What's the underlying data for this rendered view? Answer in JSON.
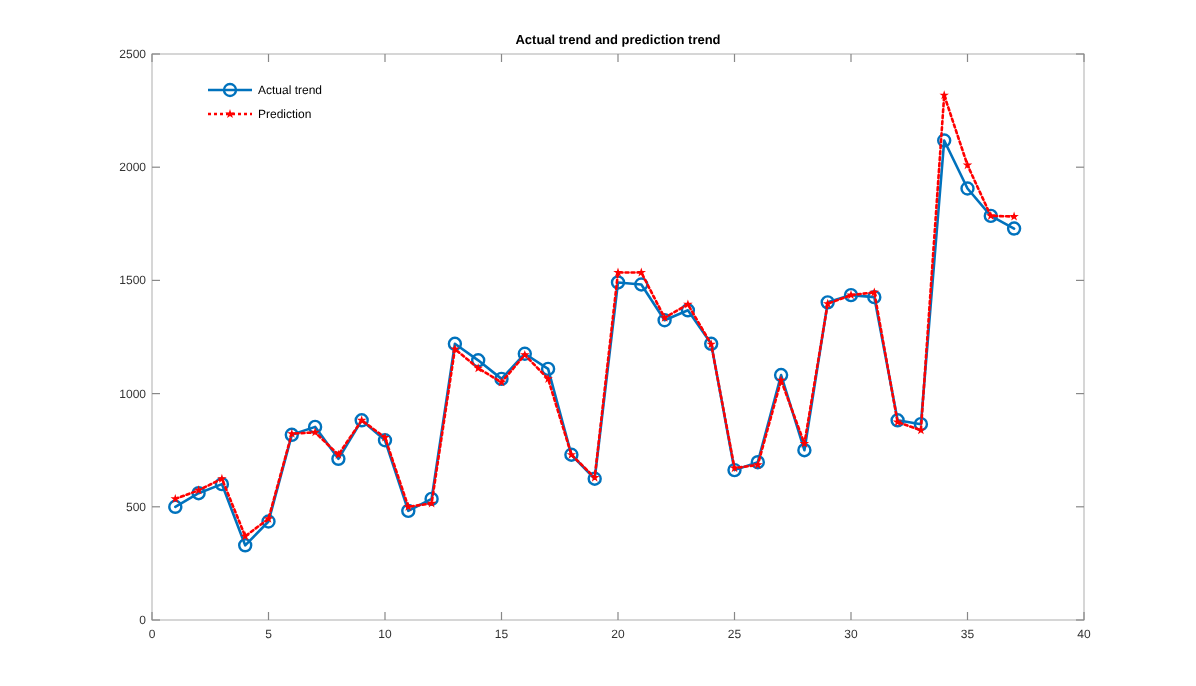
{
  "chart_data": {
    "type": "line",
    "title": "Actual trend and prediction trend",
    "x": [
      1,
      2,
      3,
      4,
      5,
      6,
      7,
      8,
      9,
      10,
      11,
      12,
      13,
      14,
      15,
      16,
      17,
      18,
      19,
      20,
      21,
      22,
      23,
      24,
      25,
      26,
      27,
      28,
      29,
      30,
      31,
      32,
      33,
      34,
      35,
      36,
      37
    ],
    "series": [
      {
        "name": "Actual trend",
        "color": "#0072bd",
        "marker": "circle",
        "line_style": "solid",
        "values": [
          500,
          560,
          600,
          330,
          435,
          818,
          853,
          712,
          882,
          794,
          482,
          535,
          1220,
          1147,
          1065,
          1176,
          1109,
          730,
          624,
          1491,
          1482,
          1324,
          1368,
          1220,
          662,
          697,
          1082,
          750,
          1403,
          1435,
          1426,
          882,
          865,
          2118,
          1906,
          1785,
          1729
        ]
      },
      {
        "name": "Prediction",
        "color": "#ff0000",
        "marker": "star",
        "line_style": "dotted",
        "values": [
          535,
          573,
          624,
          370,
          447,
          823,
          829,
          730,
          882,
          806,
          500,
          515,
          1197,
          1112,
          1050,
          1171,
          1065,
          730,
          629,
          1535,
          1535,
          1335,
          1394,
          1218,
          671,
          685,
          1059,
          779,
          1397,
          1435,
          1447,
          874,
          838,
          2318,
          2009,
          1785,
          1782
        ]
      }
    ],
    "xlim": [
      0,
      40
    ],
    "xticks": [
      0,
      5,
      10,
      15,
      20,
      25,
      30,
      35,
      40
    ],
    "ylim": [
      0,
      2500
    ],
    "yticks": [
      0,
      500,
      1000,
      1500,
      2000,
      2500
    ],
    "grid": false,
    "legend": "top left"
  }
}
